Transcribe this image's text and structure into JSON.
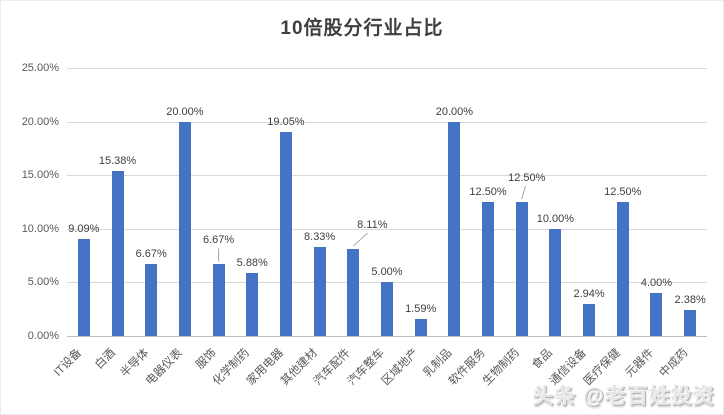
{
  "page": {
    "background": "#ffffff"
  },
  "chart_data": {
    "type": "bar",
    "title": "10倍股分行业占比",
    "categories": [
      "IT设备",
      "白酒",
      "半导体",
      "电器仪表",
      "服饰",
      "化学制药",
      "家用电器",
      "其他建材",
      "汽车配件",
      "汽车整车",
      "区域地产",
      "乳制品",
      "软件服务",
      "生物制药",
      "食品",
      "通信设备",
      "医疗保健",
      "元器件",
      "中成药"
    ],
    "values": [
      9.09,
      15.38,
      6.67,
      20.0,
      6.67,
      5.88,
      19.05,
      8.33,
      8.11,
      5.0,
      1.59,
      20.0,
      12.5,
      12.5,
      10.0,
      2.94,
      12.5,
      4.0,
      2.38
    ],
    "labels": [
      "9.09%",
      "15.38%",
      "6.67%",
      "20.00%",
      "6.67%",
      "5.88%",
      "19.05%",
      "8.33%",
      "8.11%",
      "5.00%",
      "1.59%",
      "20.00%",
      "12.50%",
      "12.50%",
      "10.00%",
      "2.94%",
      "12.50%",
      "4.00%",
      "2.38%"
    ],
    "xlabel": "",
    "ylabel": "",
    "ylim": [
      0,
      25
    ],
    "ytick_values": [
      0,
      5,
      10,
      15,
      20,
      25
    ],
    "ytick_labels": [
      "0.00%",
      "5.00%",
      "10.00%",
      "15.00%",
      "20.00%",
      "25.00%"
    ],
    "grid": true,
    "legend": "none",
    "bar_color": "#4472C4",
    "leader_line_color": "#a6a6a6",
    "label_callouts": [
      {
        "index": 4,
        "dx": 0
      },
      {
        "index": 8,
        "dx": 19
      },
      {
        "index": 13,
        "dx": 5
      }
    ]
  },
  "watermark": {
    "text": "头条 @老百姓投资"
  }
}
